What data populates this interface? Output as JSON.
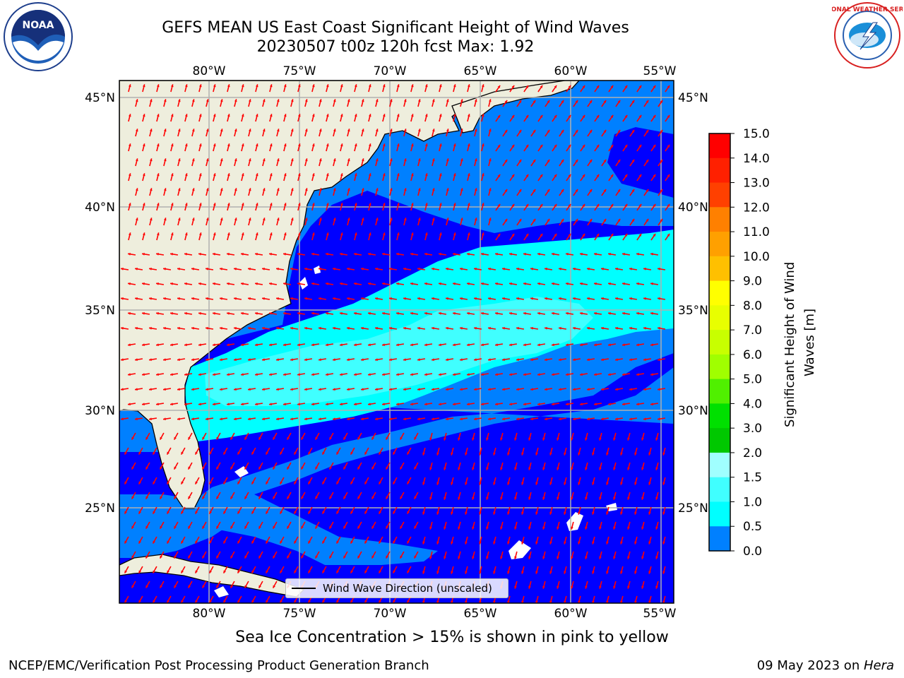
{
  "title": {
    "line1": "GEFS MEAN US East Coast Significant Height of Wind Waves",
    "line2": "20230507 t00z 120h fcst   Max: 1.92"
  },
  "logos": {
    "left": "NOAA",
    "right": "NATIONAL WEATHER SERVICE"
  },
  "map": {
    "lon_top_labels": [
      "80°W",
      "75°W",
      "70°W",
      "65°W",
      "60°W",
      "55°W"
    ],
    "lon_bottom_labels": [
      "80°W",
      "75°W",
      "70°W",
      "65°W",
      "60°W",
      "55°W"
    ],
    "lat_left_labels": [
      "45°N",
      "40°N",
      "35°N",
      "30°N",
      "25°N"
    ],
    "lat_right_labels": [
      "45°N",
      "40°N",
      "35°N",
      "30°N",
      "25°N"
    ],
    "legend_label": "Wind Wave Direction (unscaled)",
    "colors": {
      "land": "#eeeedd",
      "band_0_0p5": "#0000ff",
      "band_0p5_1": "#0080ff",
      "band_1_1p5": "#00ffff",
      "band_1p5_2": "#40ffff",
      "arrow": "#ff0000",
      "grid": "#b0b0b0"
    }
  },
  "colorbar": {
    "label": "Significant Height of Wind Waves [m]",
    "ticks": [
      "15.0",
      "14.0",
      "13.0",
      "12.0",
      "11.0",
      "10.0",
      "9.0",
      "8.0",
      "7.0",
      "6.0",
      "5.0",
      "4.0",
      "3.0",
      "2.0",
      "1.5",
      "1.0",
      "0.5",
      "0.0"
    ],
    "colors_top_to_bottom": [
      "#ff0000",
      "#ff2000",
      "#ff4000",
      "#ff8000",
      "#ffa000",
      "#ffc000",
      "#ffff00",
      "#e8ff00",
      "#c8ff00",
      "#a0ff00",
      "#50f000",
      "#00e000",
      "#00c800",
      "#40f080",
      "#a0ffff",
      "#40ffff",
      "#00ffff",
      "#0080ff",
      "#0000ff"
    ]
  },
  "ice_note": "Sea Ice Concentration > 15% is shown in pink to yellow",
  "footer": {
    "left": "NCEP/EMC/Verification Post Processing Product Generation Branch",
    "date": "09 May 2023 on ",
    "machine": "Hera"
  }
}
